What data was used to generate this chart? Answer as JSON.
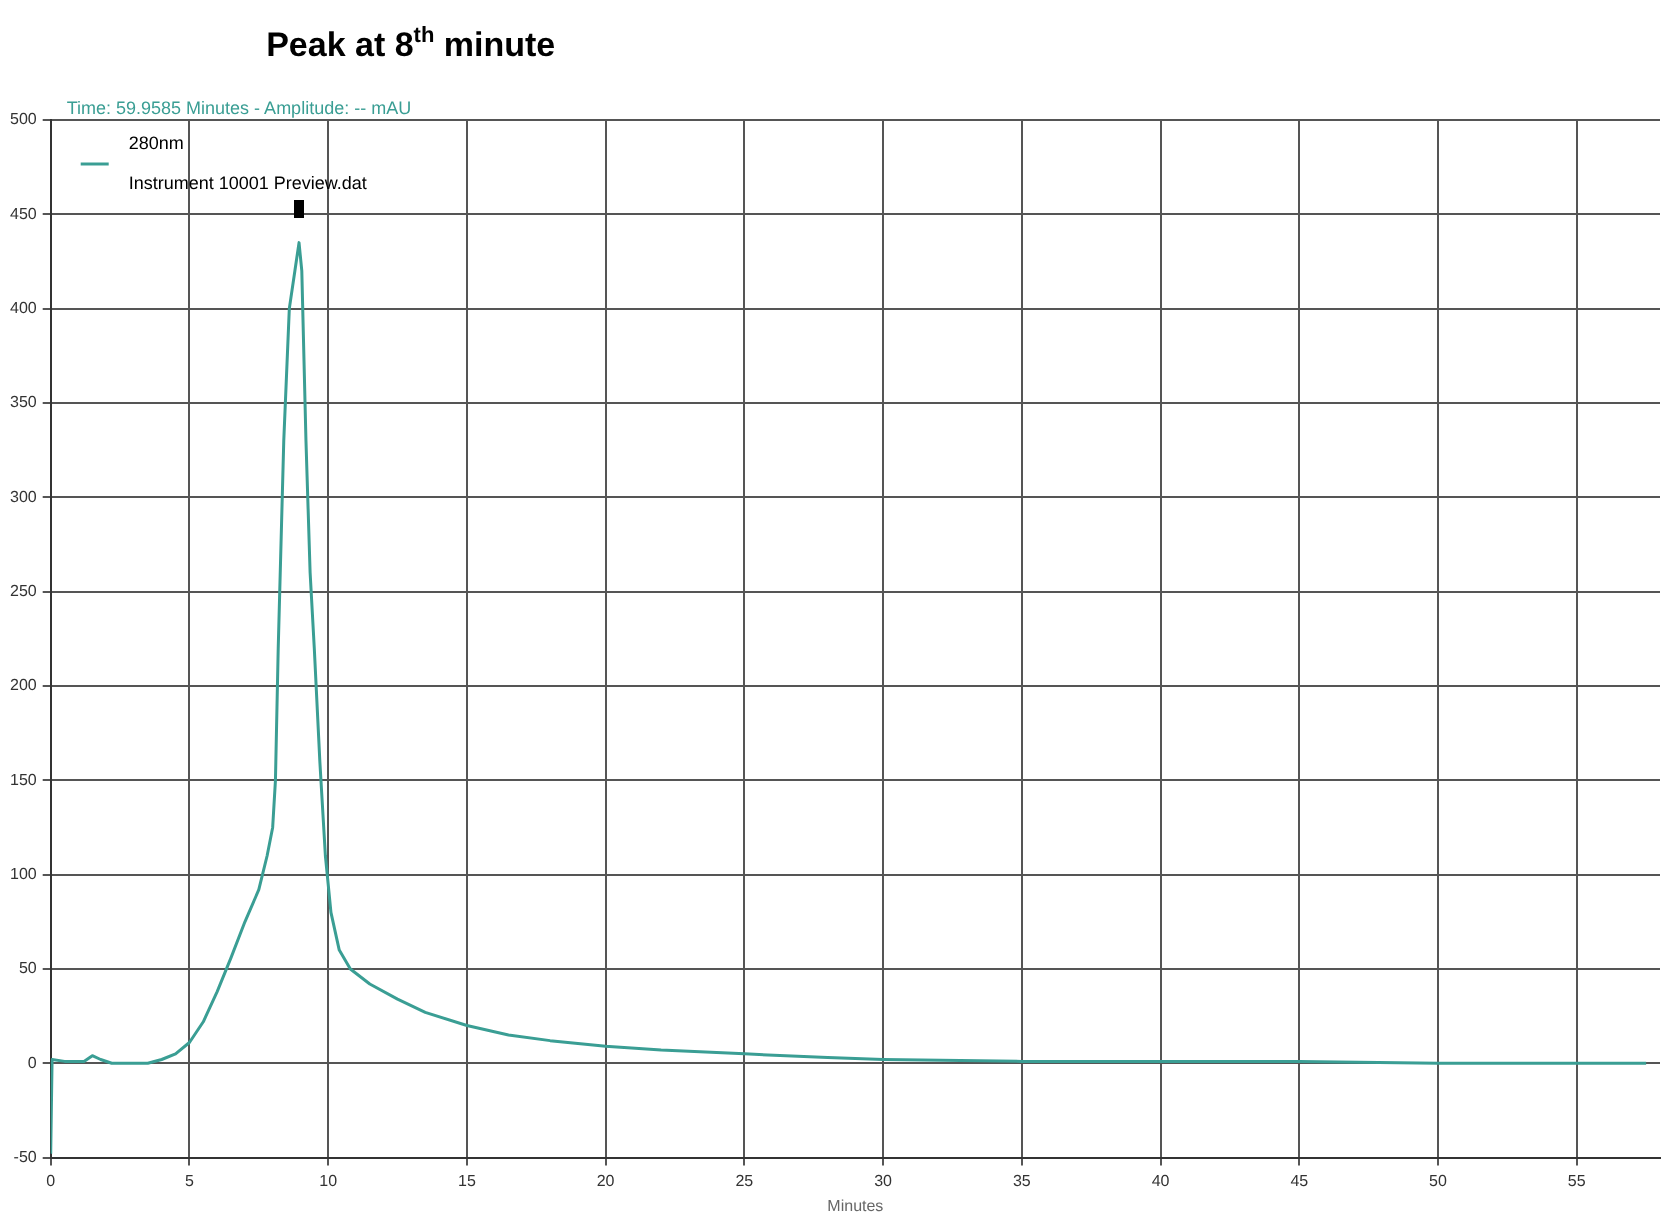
{
  "chart_data": {
    "type": "line",
    "xlabel": "Minutes",
    "xlim": [
      0,
      58
    ],
    "xticks": [
      0,
      5,
      10,
      15,
      20,
      25,
      30,
      35,
      40,
      45,
      50,
      55
    ],
    "ylim": [
      -50,
      500
    ],
    "yticks": [
      -50,
      0,
      50,
      100,
      150,
      200,
      250,
      300,
      350,
      400,
      450,
      500
    ],
    "grid": true,
    "legend": "top left",
    "marker": "none",
    "line_style": "solid",
    "annotations": [
      "Time: 59.9585 Minutes - Amplitude: -- mAU",
      "Instrument 10001 Preview.dat",
      "Peak at 8$^{th}$ minute"
    ],
    "series": [
      {
        "name": "280nm",
        "color": "#3a9e94",
        "x": [
          0,
          0.05,
          0.5,
          1.2,
          1.5,
          1.8,
          2.2,
          3.5,
          4,
          4.5,
          5,
          5.5,
          6,
          6.5,
          7,
          7.5,
          7.8,
          8,
          8.1,
          8.2,
          8.4,
          8.6,
          8.8,
          8.95,
          9.05,
          9.2,
          9.35,
          9.5,
          9.7,
          9.9,
          10.1,
          10.4,
          10.8,
          11.5,
          12.5,
          13.5,
          15,
          16.5,
          18,
          20,
          22,
          25,
          28,
          30,
          35,
          40,
          45,
          50,
          55,
          57.5
        ],
        "values": [
          -48,
          2,
          1,
          1,
          4,
          2,
          0,
          0,
          2,
          5,
          11,
          22,
          38,
          56,
          75,
          92,
          110,
          125,
          150,
          220,
          330,
          400,
          420,
          435,
          420,
          330,
          260,
          220,
          160,
          110,
          80,
          60,
          50,
          42,
          34,
          27,
          20,
          15,
          12,
          9,
          7,
          5,
          3,
          2,
          1,
          1,
          1,
          0,
          0,
          0
        ]
      }
    ]
  }
}
